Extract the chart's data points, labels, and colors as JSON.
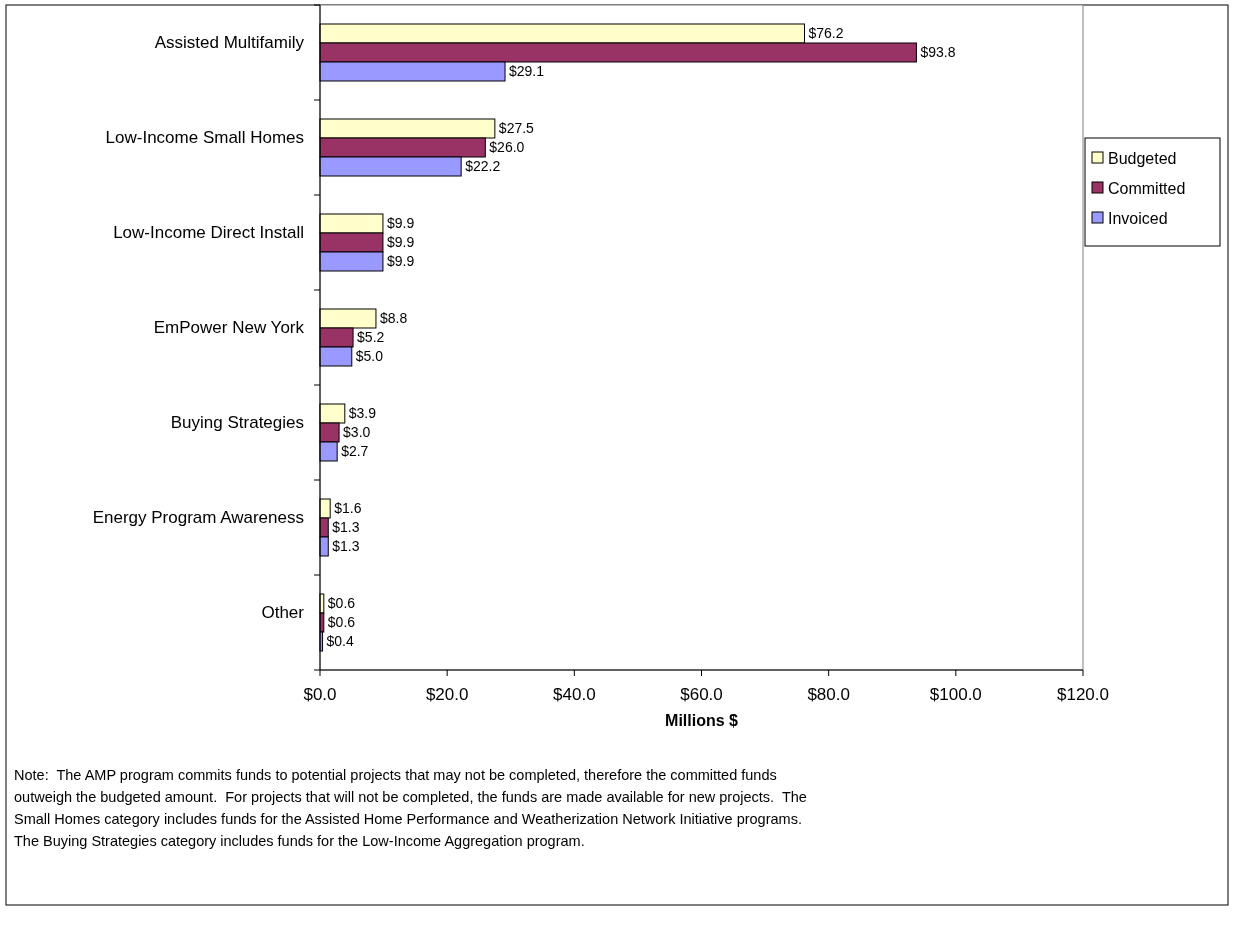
{
  "chart_data": {
    "type": "bar",
    "orientation": "horizontal",
    "xlabel": "Millions $",
    "categories": [
      "Assisted Multifamily",
      "Low-Income Small Homes",
      "Low-Income Direct Install",
      "EmPower New York",
      "Buying Strategies",
      "Energy Program Awareness",
      "Other"
    ],
    "series": [
      {
        "name": "Budgeted",
        "color": "#ffffcc",
        "values": [
          76.2,
          27.5,
          9.9,
          8.8,
          3.9,
          1.6,
          0.6
        ],
        "value_labels": [
          "$76.2",
          "$27.5",
          "$9.9",
          "$8.8",
          "$3.9",
          "$1.6",
          "$0.6"
        ]
      },
      {
        "name": "Committed",
        "color": "#993366",
        "values": [
          93.8,
          26.0,
          9.9,
          5.2,
          3.0,
          1.3,
          0.6
        ],
        "value_labels": [
          "$93.8",
          "$26.0",
          "$9.9",
          "$5.2",
          "$3.0",
          "$1.3",
          "$0.6"
        ]
      },
      {
        "name": "Invoiced",
        "color": "#9999ff",
        "values": [
          29.1,
          22.2,
          9.9,
          5.0,
          2.7,
          1.3,
          0.4
        ],
        "value_labels": [
          "$29.1",
          "$22.2",
          "$9.9",
          "$5.0",
          "$2.7",
          "$1.3",
          "$0.4"
        ]
      }
    ],
    "xlim": [
      0,
      120
    ],
    "xticks": [
      {
        "value": 0,
        "label": "$0.0"
      },
      {
        "value": 20,
        "label": "$20.0"
      },
      {
        "value": 40,
        "label": "$40.0"
      },
      {
        "value": 60,
        "label": "$60.0"
      },
      {
        "value": 80,
        "label": "$80.0"
      },
      {
        "value": 100,
        "label": "$100.0"
      },
      {
        "value": 120,
        "label": "$120.0"
      }
    ],
    "grid": false,
    "legend": "right",
    "annotations": [
      "Note:  The AMP program commits funds to potential projects that may not be completed, therefore the committed funds",
      "outweigh the budgeted amount.  For projects that will not be completed, the funds are made available for new projects.  The",
      "Small Homes category includes funds for the Assisted Home Performance and Weatherization Network Initiative programs.",
      "The Buying Strategies category includes funds for the Low-Income Aggregation program."
    ]
  }
}
